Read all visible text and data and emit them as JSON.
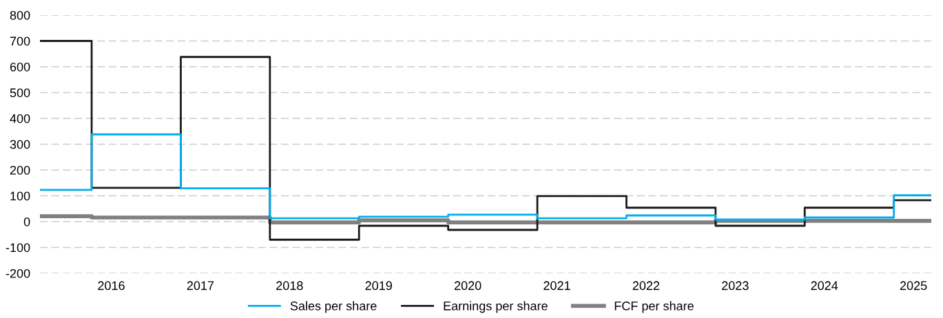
{
  "chart_data": {
    "type": "step",
    "x": [
      2015.2,
      2015.78,
      2016.78,
      2017.78,
      2018.78,
      2019.78,
      2020.78,
      2021.78,
      2022.78,
      2023.78,
      2024.78,
      2025.2
    ],
    "series": [
      {
        "name": "Sales per share",
        "color": "#00aeef",
        "values": [
          123,
          338,
          129,
          13,
          19,
          27,
          13,
          24,
          8,
          16,
          102,
          102
        ]
      },
      {
        "name": "Earnings per share",
        "color": "#1a1a1a",
        "values": [
          700,
          131,
          638,
          -70,
          -16,
          -32,
          99,
          54,
          -16,
          54,
          83,
          83
        ]
      },
      {
        "name": "FCF per share",
        "color": "#808080",
        "values": [
          21,
          16,
          16,
          -3,
          5,
          -3,
          -3,
          -3,
          3,
          3,
          3,
          3
        ]
      }
    ],
    "xlim": [
      2015.2,
      2025.2
    ],
    "xticks": [
      2016,
      2017,
      2018,
      2019,
      2020,
      2021,
      2022,
      2023,
      2024,
      2025
    ],
    "ylim": [
      -200,
      800
    ],
    "yticks": [
      -200,
      -100,
      0,
      100,
      200,
      300,
      400,
      500,
      600,
      700,
      800
    ],
    "grid": "y",
    "legend": "bottom",
    "marker": "none",
    "line_style": "solid"
  }
}
